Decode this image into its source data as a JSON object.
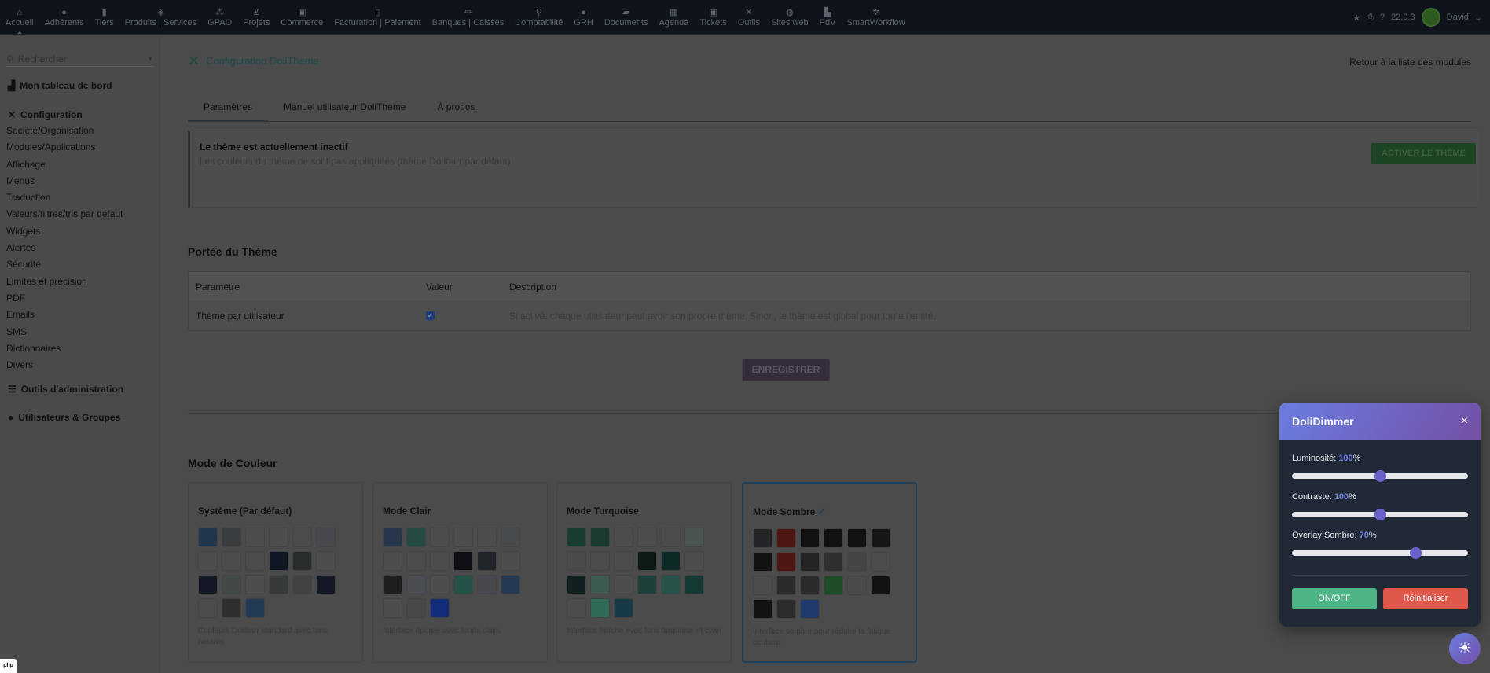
{
  "topbar": {
    "items": [
      {
        "label": "Accueil",
        "icon": "home-icon",
        "glyph": "⌂"
      },
      {
        "label": "Adhérents",
        "icon": "member-icon",
        "glyph": "●"
      },
      {
        "label": "Tiers",
        "icon": "building-icon",
        "glyph": "▮"
      },
      {
        "label": "Produits | Services",
        "icon": "cube-icon",
        "glyph": "◈"
      },
      {
        "label": "GPAO",
        "icon": "cubes-icon",
        "glyph": "⁂"
      },
      {
        "label": "Projets",
        "icon": "sitemap-icon",
        "glyph": "⊻"
      },
      {
        "label": "Commerce",
        "icon": "briefcase-icon",
        "glyph": "▣"
      },
      {
        "label": "Facturation | Paiement",
        "icon": "invoice-icon",
        "glyph": "▯"
      },
      {
        "label": "Banques | Caisses",
        "icon": "bank-icon",
        "glyph": "⏛"
      },
      {
        "label": "Comptabilité",
        "icon": "search-dollar-icon",
        "glyph": "⚲"
      },
      {
        "label": "GRH",
        "icon": "user-tie-icon",
        "glyph": "●"
      },
      {
        "label": "Documents",
        "icon": "folder-icon",
        "glyph": "▰"
      },
      {
        "label": "Agenda",
        "icon": "calendar-icon",
        "glyph": "▦"
      },
      {
        "label": "Tickets",
        "icon": "ticket-icon",
        "glyph": "▣"
      },
      {
        "label": "Outils",
        "icon": "tools-icon",
        "glyph": "✕"
      },
      {
        "label": "Sites web",
        "icon": "globe-icon",
        "glyph": "◍"
      },
      {
        "label": "PdV",
        "icon": "cash-register-icon",
        "glyph": "▙"
      },
      {
        "label": "SmartWorkflow",
        "icon": "cogs-icon",
        "glyph": "✲"
      }
    ],
    "version": "22.0.3",
    "user": "David"
  },
  "sidebar": {
    "search_placeholder": "Rechercher",
    "dashboard": "Mon tableau de bord",
    "config": "Configuration",
    "items": [
      "Société/Organisation",
      "Modules/Applications",
      "Affichage",
      "Menus",
      "Traduction",
      "Valeurs/filtres/tris par défaut",
      "Widgets",
      "Alertes",
      "Sécurité",
      "Limites et précision",
      "PDF",
      "Emails",
      "SMS",
      "Dictionnaires",
      "Divers"
    ],
    "admin_tools": "Outils d'administration",
    "users_groups": "Utilisateurs & Groupes"
  },
  "main": {
    "title": "Configuration DoliTheme",
    "back": "Retour à la liste des modules",
    "tabs": [
      "Paramètres",
      "Manuel utilisateur DoliTheme",
      "À propos"
    ],
    "alert": {
      "title": "Le thème est actuellement inactif",
      "text": "Les couleurs du thème ne sont pas appliquées (thème Dolibarr par défaut)",
      "button": "ACTIVER LE THÈME"
    },
    "scope": {
      "heading": "Portée du Thème",
      "headers": [
        "Paramètre",
        "Valeur",
        "Description"
      ],
      "row": {
        "param": "Thème par utilisateur",
        "checked": true,
        "description": "Si activé, chaque utilisateur peut avoir son propre thème. Sinon, le thème est global pour toute l'entité."
      }
    },
    "save": "ENREGISTRER",
    "color_mode": {
      "heading": "Mode de Couleur",
      "selected": "Mode Sombre",
      "check": "✓",
      "cards": [
        {
          "name": "Système (Par défaut)",
          "desc": "Couleurs Dolibarr standard avec tons neutres",
          "swatches": [
            "#21354d",
            "#3a3d3f",
            "#4b4c4d",
            "#4d4d4d",
            "#4a4c4c",
            "#47494c",
            "#4d4d4d",
            "#4c4c4c",
            "#4a4b4b",
            "#111625",
            "#2a2d2e",
            "#4d4d4d",
            "#141824",
            "#454849",
            "#4d4d4d",
            "#363a3b",
            "#3f4143",
            "#141824",
            "#4a4c4c",
            "#2e2f31",
            "#213a55"
          ]
        },
        {
          "name": "Mode Clair",
          "desc": "Interface épurée avec fonds clairs",
          "swatches": [
            "#26374b",
            "#254a43",
            "#4b4c4d",
            "#4d4d4d",
            "#4c4c4d",
            "#484b4e",
            "#4d4d4d",
            "#4b4c4d",
            "#4c4c4d",
            "#0d0f12",
            "#22262a",
            "#4d4d4d",
            "#1d1e20",
            "#4a4d51",
            "#4d4d4d",
            "#245247",
            "#47494c",
            "#243a52",
            "#4d4d4d",
            "#46484a",
            "#112c7a"
          ]
        },
        {
          "name": "Mode Turquoise",
          "desc": "Interface fraîche avec tons turquoise et cyan",
          "swatches": [
            "#1a3d33",
            "#1b3a30",
            "#4b4c4c",
            "#4d4d4d",
            "#4a4c4b",
            "#4a5552",
            "#484b4a",
            "#4a4c4b",
            "#4a4d4c",
            "#0d1a18",
            "#0e2a26",
            "#4d4d4d",
            "#0f201e",
            "#3c5a52",
            "#4d4d4d",
            "#1c4039",
            "#275449",
            "#123a30",
            "#4a4d4c",
            "#2f6a58",
            "#173a47"
          ]
        },
        {
          "name": "Mode Sombre",
          "desc": "Interface sombre pour réduire la fatigue oculaire",
          "swatches": [
            "#232427",
            "#4d1612",
            "#111213",
            "#111213",
            "#111213",
            "#151617",
            "#111213",
            "#4d1612",
            "#232323",
            "#2e2f2e",
            "#434546",
            "#4b4b4b",
            "#4b4b4b",
            "#2b2b2d",
            "#2a2b2d",
            "#1e4b28",
            "#4a4a4a",
            "#111213",
            "#111213",
            "#2b2c2e",
            "#1f3a6a"
          ]
        }
      ]
    }
  },
  "dimmer": {
    "title": "DoliDimmer",
    "close": "×",
    "sliders": [
      {
        "label": "Luminosité: ",
        "value": 100,
        "unit": "%",
        "min": 0,
        "max": 200
      },
      {
        "label": "Contraste: ",
        "value": 100,
        "unit": "%",
        "min": 0,
        "max": 200
      },
      {
        "label": "Overlay Sombre: ",
        "value": 70,
        "unit": "%",
        "min": 0,
        "max": 100
      }
    ],
    "on_off": "ON/OFF",
    "reset": "Réinitialiser",
    "colors": {
      "onoff": "#4cb485",
      "reset": "#e0574c",
      "accent": "#7083e4"
    }
  },
  "fab_icon": "sun-icon",
  "php_badge": "php"
}
